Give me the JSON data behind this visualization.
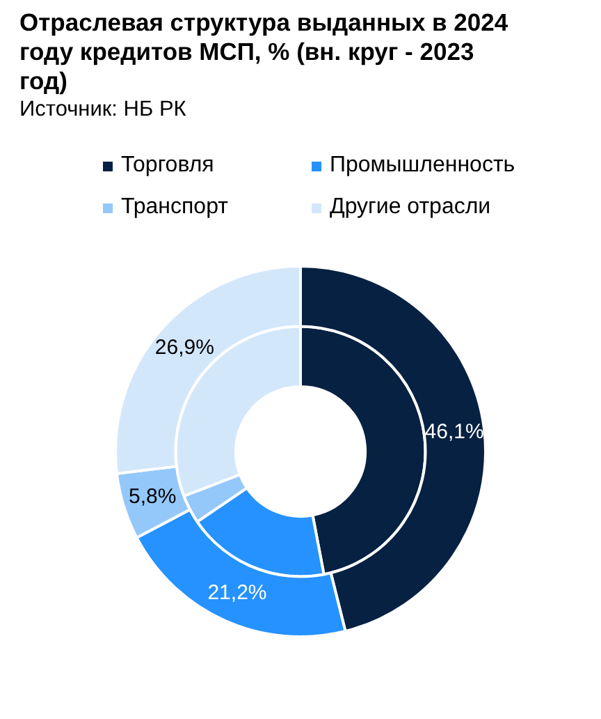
{
  "chart_data": {
    "type": "donut",
    "title": "Отраслевая структура выданных в 2024 году кредитов МСП, % (вн. круг - 2023 год)",
    "annotations": [
      "Источник: НБ РК"
    ],
    "categories": [
      "Торговля",
      "Промышленность",
      "Транспорт",
      "Другие отрасли"
    ],
    "colors": [
      "#062142",
      "#2592ff",
      "#94c8fb",
      "#d3e7fb"
    ],
    "series": [
      {
        "values": [
          46.1,
          21.2,
          5.8,
          26.9
        ],
        "value_labels": [
          "46,1%",
          "21,2%",
          "5,8%",
          "26,9%"
        ]
      },
      {
        "values": [
          47.0,
          18.5,
          3.7,
          30.8
        ]
      }
    ],
    "legend": "top"
  }
}
